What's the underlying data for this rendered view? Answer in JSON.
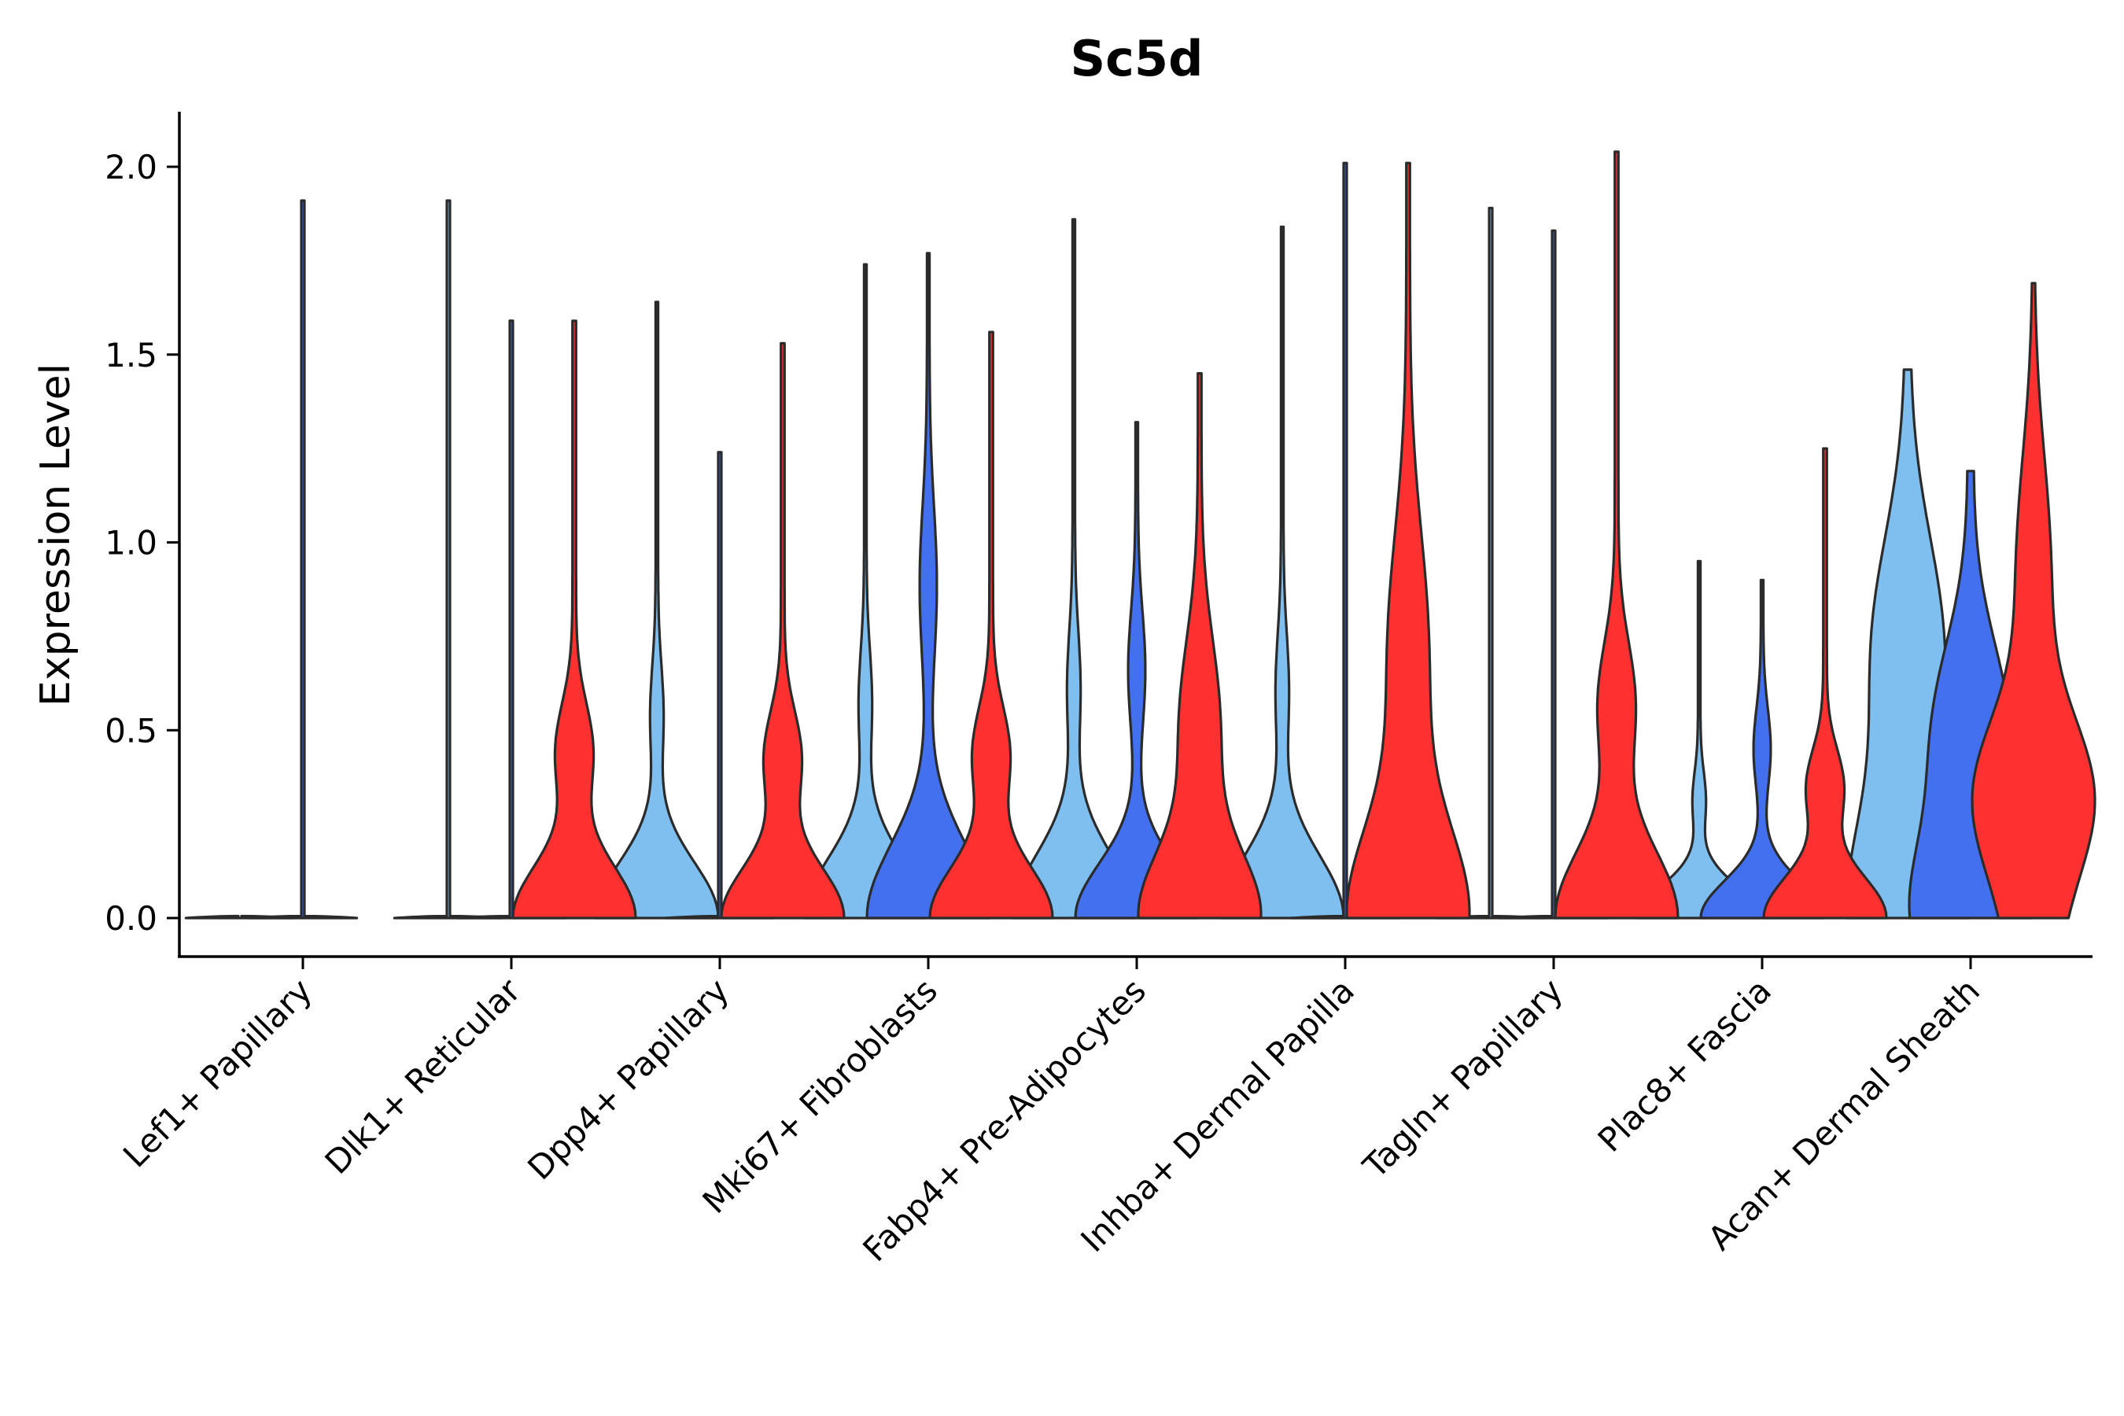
{
  "chart_data": {
    "type": "violin",
    "title": "Sc5d",
    "ylabel": "Expression Level",
    "xlabel": "",
    "ylim": [
      -0.1,
      2.15
    ],
    "yticks": [
      0.0,
      0.5,
      1.0,
      1.5,
      2.0
    ],
    "ytick_labels": [
      "0.0",
      "0.5",
      "1.0",
      "1.5",
      "2.0"
    ],
    "categories": [
      "Lef1+ Papillary",
      "Dlk1+ Reticular",
      "Dpp4+ Papillary",
      "Mki67+ Fibroblasts",
      "Fabp4+ Pre-Adipocytes",
      "Inhba+ Dermal Papilla",
      "Tagln+ Papillary",
      "Plac8+ Fascia",
      "Acan+ Dermal Sheath"
    ],
    "group_colors": {
      "A": "#7fbfef",
      "B": "#4270ee",
      "C": "#ff3030"
    },
    "series": [
      {
        "name": "A",
        "color": "#7fbfef",
        "max": [
          0.0,
          1.91,
          1.64,
          1.74,
          1.86,
          1.84,
          1.89,
          0.95,
          1.46
        ],
        "shape": [
          "empty",
          "empty",
          "skewA",
          "skewA",
          "skewA",
          "skewA",
          "empty",
          "skewA",
          "wide"
        ]
      },
      {
        "name": "B",
        "color": "#4270ee",
        "max": [
          1.91,
          1.59,
          1.24,
          1.77,
          1.32,
          2.01,
          1.83,
          0.9,
          1.19
        ],
        "shape": [
          "empty",
          "empty",
          "empty",
          "skewB",
          "skewB",
          "empty",
          "empty",
          "skewB",
          "wideB"
        ]
      },
      {
        "name": "C",
        "color": "#ff3030",
        "max": [
          null,
          1.59,
          1.53,
          1.56,
          1.45,
          2.01,
          2.04,
          1.25,
          1.69
        ],
        "shape": [
          "none",
          "skewC",
          "skewC",
          "skewC",
          "skewCwide",
          "skewCwide",
          "skewC",
          "skewC",
          "wideC"
        ]
      }
    ]
  }
}
